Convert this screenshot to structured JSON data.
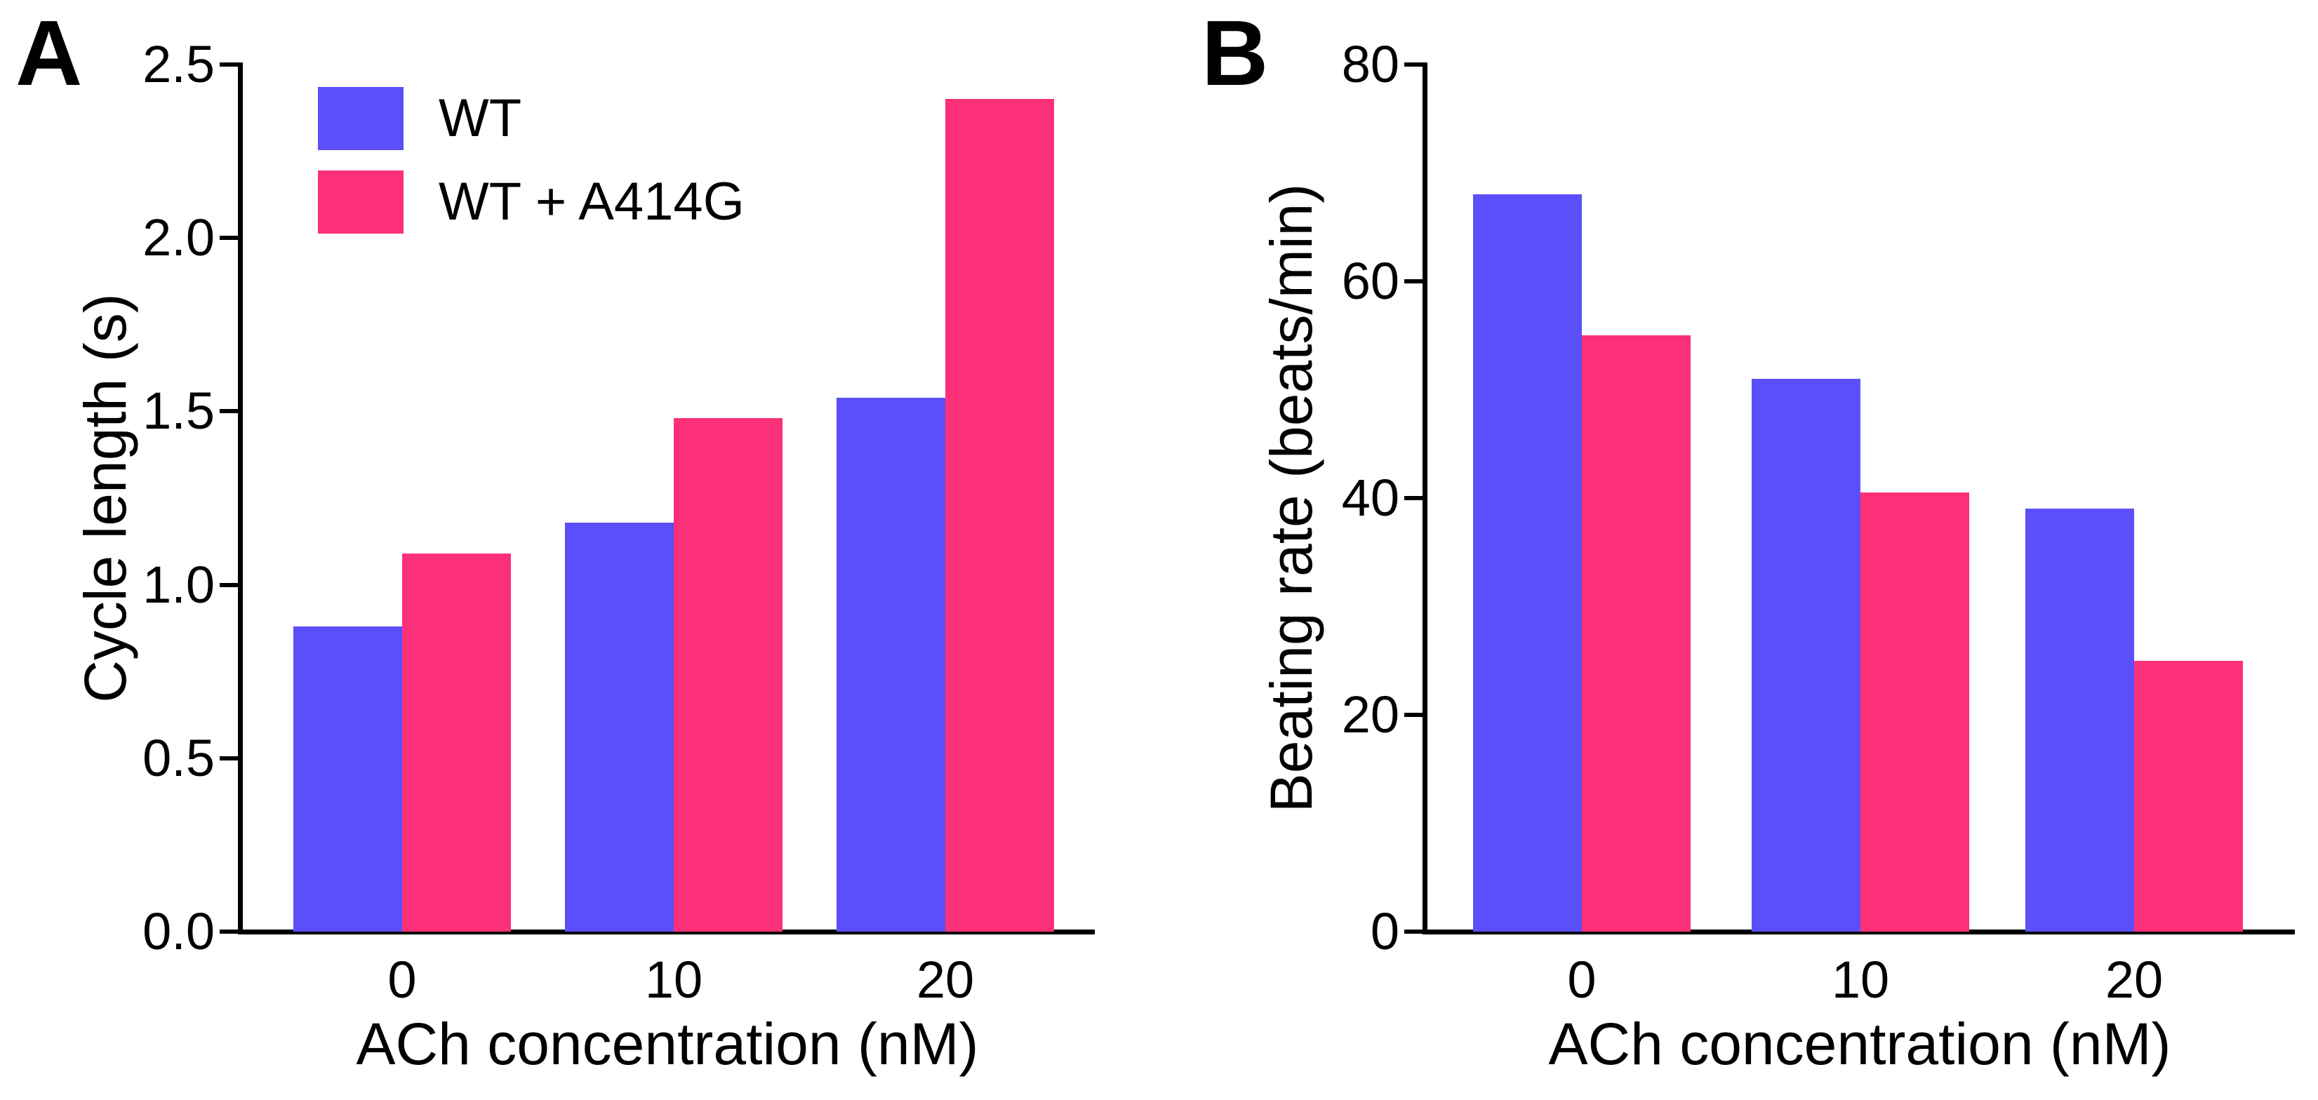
{
  "figure": {
    "panel_a": {
      "letter": "A",
      "y_label": "Cycle length (s)",
      "x_label": "ACh concentration (nM)",
      "y_ticks": [
        "0.0",
        "0.5",
        "1.0",
        "1.5",
        "2.0",
        "2.5"
      ],
      "x_ticks": [
        "0",
        "10",
        "20"
      ]
    },
    "panel_b": {
      "letter": "B",
      "y_label": "Beating rate (beats/min)",
      "x_label": "ACh concentration (nM)",
      "y_ticks": [
        "0",
        "20",
        "40",
        "60",
        "80"
      ],
      "x_ticks": [
        "0",
        "10",
        "20"
      ]
    },
    "legend": {
      "items": [
        {
          "label": "WT",
          "color": "#5A4FF8"
        },
        {
          "label": "WT + A414G",
          "color": "#FB3078"
        }
      ]
    }
  },
  "chart_data": [
    {
      "type": "bar",
      "panel": "A",
      "title": "",
      "categories": [
        "0",
        "10",
        "20"
      ],
      "xlabel": "ACh concentration (nM)",
      "ylabel": "Cycle length (s)",
      "ylim": [
        0,
        2.5
      ],
      "ytick_step": 0.5,
      "grid": false,
      "legend_position": "upper-left-inside",
      "series": [
        {
          "name": "WT",
          "color": "#5A4FF8",
          "values": [
            0.88,
            1.18,
            1.54
          ]
        },
        {
          "name": "WT + A414G",
          "color": "#FB3078",
          "values": [
            1.09,
            1.48,
            2.4
          ]
        }
      ]
    },
    {
      "type": "bar",
      "panel": "B",
      "title": "",
      "categories": [
        "0",
        "10",
        "20"
      ],
      "xlabel": "ACh concentration (nM)",
      "ylabel": "Beating rate (beats/min)",
      "ylim": [
        0,
        80
      ],
      "ytick_step": 20,
      "grid": false,
      "legend_position": "none",
      "series": [
        {
          "name": "WT",
          "color": "#5A4FF8",
          "values": [
            68,
            51,
            39
          ]
        },
        {
          "name": "WT + A414G",
          "color": "#FB3078",
          "values": [
            55,
            40.5,
            25
          ]
        }
      ]
    }
  ]
}
